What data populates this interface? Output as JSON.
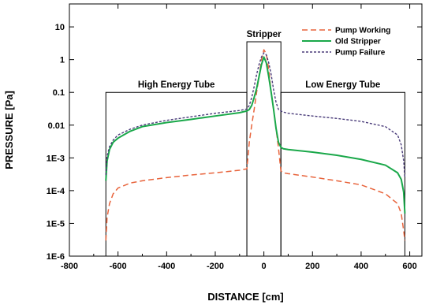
{
  "chart_data": {
    "type": "line",
    "xlabel": "DISTANCE [cm]",
    "ylabel": "PRESSURE [Pa]",
    "xlim": [
      -800,
      650
    ],
    "ylim_log10": [
      -6,
      1.7
    ],
    "y_scale": "log",
    "grid": false,
    "legend_position": "top-right",
    "x_ticks": [
      -800,
      -600,
      -400,
      -200,
      0,
      200,
      400,
      600
    ],
    "x_tick_labels": [
      "-800",
      "-600",
      "-400",
      "-200",
      "0",
      "200",
      "400",
      "600"
    ],
    "y_ticks": [
      1e-06,
      1e-05,
      0.0001,
      0.001,
      0.01,
      0.1,
      1,
      10
    ],
    "y_tick_labels": [
      "1E-6",
      "1E-5",
      "1E-4",
      "1E-3",
      "0.01",
      "0.1",
      "1",
      "10"
    ],
    "regions": [
      {
        "label": "High Energy Tube",
        "x_start": -650,
        "x_end": -70,
        "y_top": 0.1
      },
      {
        "label": "Stripper",
        "x_start": -70,
        "x_end": 70,
        "y_top": 3.5
      },
      {
        "label": "Low Energy Tube",
        "x_start": 70,
        "x_end": 580,
        "y_top": 0.1
      }
    ],
    "series": [
      {
        "name": "Pump Working",
        "color": "#e8643c",
        "dash": "dashed",
        "x": [
          -650,
          -645,
          -635,
          -620,
          -600,
          -550,
          -500,
          -400,
          -300,
          -200,
          -100,
          -80,
          -70,
          -60,
          -50,
          -40,
          -30,
          -20,
          -10,
          0,
          10,
          20,
          30,
          40,
          50,
          60,
          70,
          80,
          100,
          200,
          300,
          400,
          500,
          550,
          565,
          575,
          580
        ],
        "y": [
          3e-06,
          1.5e-05,
          4e-05,
          8e-05,
          0.00012,
          0.00017,
          0.0002,
          0.00025,
          0.0003,
          0.00035,
          0.00042,
          0.00045,
          0.00046,
          0.003,
          0.01,
          0.03,
          0.1,
          0.3,
          1,
          2,
          1.5,
          0.5,
          0.1,
          0.03,
          0.008,
          0.002,
          0.0004,
          0.00035,
          0.00033,
          0.00026,
          0.0002,
          0.00015,
          8e-05,
          4e-05,
          2e-05,
          6e-06,
          3e-06
        ]
      },
      {
        "name": "Old Stripper",
        "color": "#1aa84a",
        "dash": "solid",
        "x": [
          -650,
          -645,
          -635,
          -620,
          -600,
          -550,
          -500,
          -400,
          -300,
          -200,
          -100,
          -80,
          -70,
          -60,
          -50,
          -40,
          -30,
          -20,
          -10,
          0,
          10,
          20,
          30,
          40,
          50,
          60,
          70,
          80,
          100,
          200,
          300,
          400,
          500,
          550,
          565,
          575,
          580
        ],
        "y": [
          0.0002,
          0.0008,
          0.0018,
          0.003,
          0.004,
          0.0065,
          0.009,
          0.012,
          0.015,
          0.019,
          0.024,
          0.026,
          0.027,
          0.03,
          0.04,
          0.07,
          0.13,
          0.3,
          0.7,
          1.2,
          0.8,
          0.3,
          0.1,
          0.03,
          0.008,
          0.003,
          0.0021,
          0.0019,
          0.0018,
          0.0015,
          0.0012,
          0.0009,
          0.0006,
          0.00035,
          0.00022,
          9e-05,
          2e-05
        ]
      },
      {
        "name": "Pump Failure",
        "color": "#4a3c7a",
        "dash": "dotted",
        "x": [
          -650,
          -645,
          -635,
          -620,
          -600,
          -550,
          -500,
          -400,
          -300,
          -200,
          -100,
          -80,
          -70,
          -60,
          -50,
          -40,
          -30,
          -20,
          -10,
          0,
          10,
          20,
          30,
          40,
          50,
          60,
          70,
          80,
          100,
          200,
          300,
          400,
          500,
          550,
          565,
          575,
          580
        ],
        "y": [
          0.0003,
          0.0011,
          0.0022,
          0.0035,
          0.005,
          0.0075,
          0.01,
          0.014,
          0.018,
          0.023,
          0.028,
          0.03,
          0.031,
          0.04,
          0.07,
          0.15,
          0.35,
          0.7,
          1.2,
          1.6,
          1.4,
          0.8,
          0.35,
          0.12,
          0.05,
          0.03,
          0.027,
          0.025,
          0.023,
          0.019,
          0.016,
          0.013,
          0.009,
          0.005,
          0.0025,
          0.0008,
          0.00025
        ]
      }
    ]
  }
}
